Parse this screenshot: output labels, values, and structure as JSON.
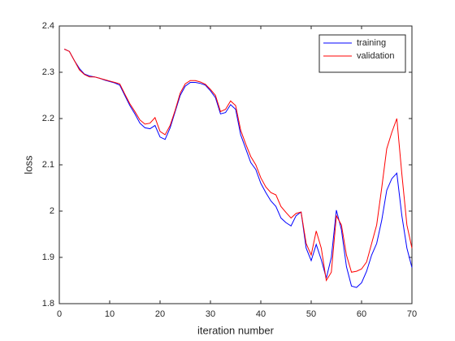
{
  "chart_data": {
    "type": "line",
    "xlabel": "iteration number",
    "ylabel": "loss",
    "x": [
      1,
      2,
      3,
      4,
      5,
      6,
      7,
      8,
      9,
      10,
      11,
      12,
      13,
      14,
      15,
      16,
      17,
      18,
      19,
      20,
      21,
      22,
      23,
      24,
      25,
      26,
      27,
      28,
      29,
      30,
      31,
      32,
      33,
      34,
      35,
      36,
      37,
      38,
      39,
      40,
      41,
      42,
      43,
      44,
      45,
      46,
      47,
      48,
      49,
      50,
      51,
      52,
      53,
      54,
      55,
      56,
      57,
      58,
      59,
      60,
      61,
      62,
      63,
      64,
      65,
      66,
      67,
      68,
      69,
      70
    ],
    "series": [
      {
        "name": "training",
        "color": "#0000ff",
        "values": [
          2.35,
          2.345,
          2.325,
          2.308,
          2.296,
          2.292,
          2.29,
          2.287,
          2.283,
          2.28,
          2.277,
          2.272,
          2.25,
          2.228,
          2.21,
          2.19,
          2.18,
          2.178,
          2.185,
          2.16,
          2.155,
          2.18,
          2.215,
          2.25,
          2.27,
          2.278,
          2.278,
          2.276,
          2.272,
          2.26,
          2.245,
          2.21,
          2.213,
          2.23,
          2.22,
          2.165,
          2.135,
          2.105,
          2.09,
          2.06,
          2.04,
          2.022,
          2.01,
          1.985,
          1.975,
          1.968,
          1.99,
          1.998,
          1.92,
          1.893,
          1.928,
          1.895,
          1.855,
          1.9,
          2.002,
          1.96,
          1.88,
          1.838,
          1.835,
          1.845,
          1.87,
          1.905,
          1.93,
          1.98,
          2.045,
          2.07,
          2.082,
          1.99,
          1.92,
          1.878
        ]
      },
      {
        "name": "validation",
        "color": "#ff0000",
        "values": [
          2.35,
          2.345,
          2.325,
          2.305,
          2.295,
          2.29,
          2.29,
          2.287,
          2.284,
          2.281,
          2.278,
          2.275,
          2.253,
          2.232,
          2.215,
          2.197,
          2.188,
          2.19,
          2.202,
          2.172,
          2.165,
          2.185,
          2.218,
          2.255,
          2.275,
          2.282,
          2.282,
          2.279,
          2.274,
          2.263,
          2.25,
          2.215,
          2.22,
          2.238,
          2.228,
          2.175,
          2.145,
          2.118,
          2.1,
          2.072,
          2.052,
          2.04,
          2.035,
          2.01,
          1.997,
          1.985,
          1.995,
          1.998,
          1.93,
          1.905,
          1.957,
          1.92,
          1.85,
          1.868,
          1.99,
          1.97,
          1.905,
          1.868,
          1.87,
          1.875,
          1.89,
          1.93,
          1.97,
          2.05,
          2.135,
          2.17,
          2.2,
          2.08,
          1.97,
          1.92
        ]
      }
    ],
    "xlim": [
      0,
      70
    ],
    "xticks": [
      0,
      10,
      20,
      30,
      40,
      50,
      60,
      70
    ],
    "ylim": [
      1.8,
      2.4
    ],
    "yticks": [
      1.8,
      1.9,
      2,
      2.1,
      2.2,
      2.3,
      2.4
    ],
    "grid": false,
    "legend": "northeast"
  }
}
